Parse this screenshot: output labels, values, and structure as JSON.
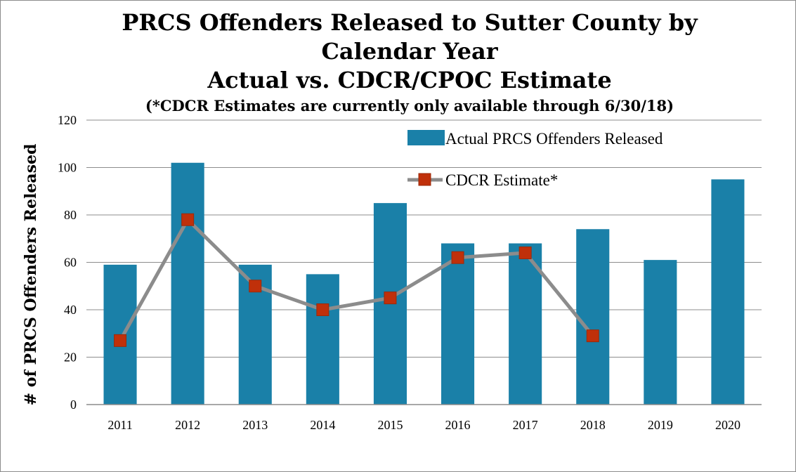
{
  "chart_data": {
    "type": "bar",
    "title_lines": [
      "PRCS Offenders Released to Sutter County by",
      "Calendar Year",
      "Actual vs. CDCR/CPOC Estimate"
    ],
    "subtitle": "(*CDCR Estimates are currently only available through 6/30/18)",
    "ylabel": "# of PRCS Offenders Released",
    "xlabel": "",
    "ylim": [
      0,
      120
    ],
    "yticks": [
      0,
      20,
      40,
      60,
      80,
      100,
      120
    ],
    "grid": true,
    "legend_position": "top-right",
    "categories": [
      "2011",
      "2012",
      "2013",
      "2014",
      "2015",
      "2016",
      "2017",
      "2018",
      "2019",
      "2020"
    ],
    "series": [
      {
        "name": "Actual PRCS Offenders Released",
        "kind": "bar",
        "color": "#1a80a8",
        "values": [
          59,
          102,
          59,
          55,
          85,
          68,
          68,
          74,
          61,
          95
        ]
      },
      {
        "name": "CDCR Estimate*",
        "kind": "line",
        "line_color": "#8c8c8c",
        "marker_color": "#c0300a",
        "values": [
          27,
          78,
          50,
          40,
          45,
          62,
          64,
          29,
          null,
          null
        ]
      }
    ]
  }
}
